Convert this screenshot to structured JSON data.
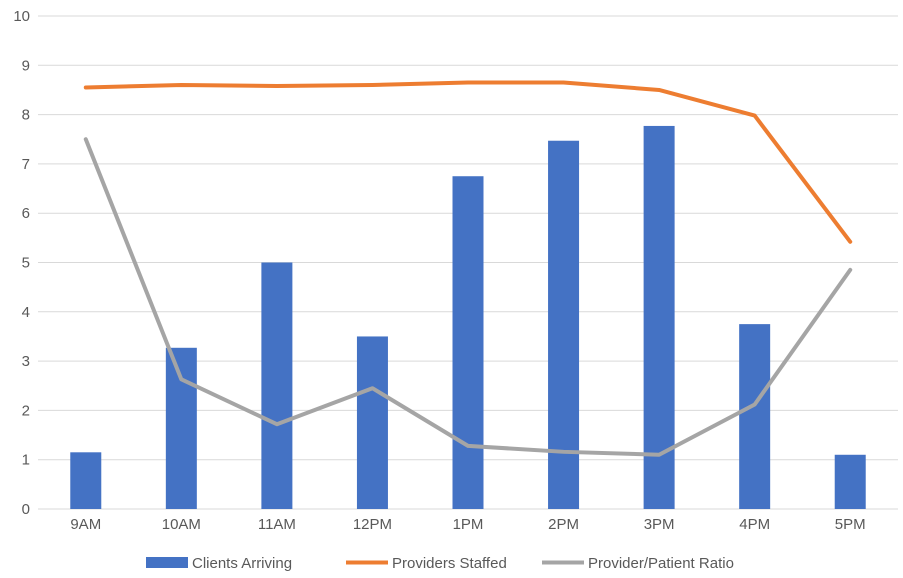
{
  "chart_data": {
    "type": "bar",
    "categories": [
      "9AM",
      "10AM",
      "11AM",
      "12PM",
      "1PM",
      "2PM",
      "3PM",
      "4PM",
      "5PM"
    ],
    "ylim": [
      0,
      10
    ],
    "yticks": [
      "0",
      "1",
      "2",
      "3",
      "4",
      "5",
      "6",
      "7",
      "8",
      "9",
      "10"
    ],
    "grid": true,
    "legend_position": "bottom",
    "series": [
      {
        "name": "Clients Arriving",
        "kind": "bar",
        "color": "#4472C4",
        "values": [
          1.15,
          3.27,
          5.0,
          3.5,
          6.75,
          7.47,
          7.77,
          3.75,
          1.1
        ]
      },
      {
        "name": "Providers Staffed",
        "kind": "line",
        "color": "#ED7D31",
        "values": [
          8.55,
          8.6,
          8.58,
          8.6,
          8.65,
          8.65,
          8.5,
          7.98,
          5.42
        ]
      },
      {
        "name": "Provider/Patient Ratio",
        "kind": "line",
        "color": "#A5A5A5",
        "values": [
          7.5,
          2.63,
          1.72,
          2.45,
          1.28,
          1.16,
          1.1,
          2.12,
          4.85
        ]
      }
    ]
  }
}
